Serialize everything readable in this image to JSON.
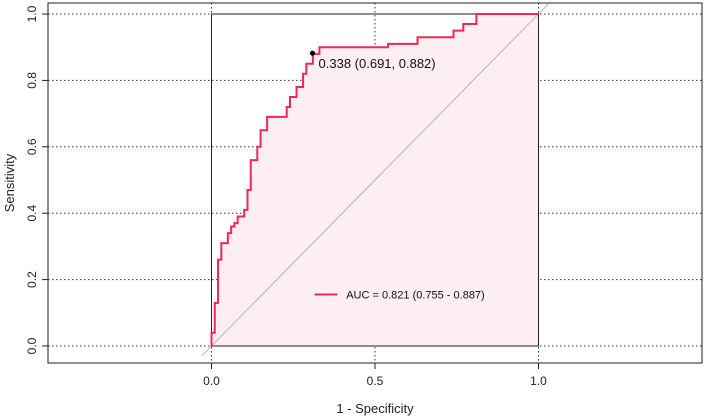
{
  "chart_data": {
    "type": "line",
    "title": "",
    "xlabel": "1 - Specificity",
    "ylabel": "Sensitivity",
    "xlim": [
      -0.5,
      1.5
    ],
    "ylim": [
      0.0,
      1.0
    ],
    "x_ticks": [
      0.0,
      0.5,
      1.0
    ],
    "x_tick_labels": [
      "0.0",
      "0.5",
      "1.0"
    ],
    "y_ticks": [
      0.0,
      0.2,
      0.4,
      0.6,
      0.8,
      1.0
    ],
    "y_tick_labels": [
      "0.0",
      "0.2",
      "0.4",
      "0.6",
      "0.8",
      "1.0"
    ],
    "grid": true,
    "colors": {
      "curve": "#f0285a",
      "fill": "#fdeef2",
      "diagonal": "#b4b4b4",
      "grid": "#333333",
      "point": "#000000"
    },
    "series": [
      {
        "values": [
          [
            0.0,
            0.0
          ],
          [
            0.0,
            0.04
          ],
          [
            0.01,
            0.04
          ],
          [
            0.01,
            0.13
          ],
          [
            0.02,
            0.13
          ],
          [
            0.02,
            0.26
          ],
          [
            0.03,
            0.26
          ],
          [
            0.03,
            0.31
          ],
          [
            0.05,
            0.31
          ],
          [
            0.05,
            0.34
          ],
          [
            0.06,
            0.34
          ],
          [
            0.06,
            0.36
          ],
          [
            0.07,
            0.36
          ],
          [
            0.07,
            0.37
          ],
          [
            0.08,
            0.37
          ],
          [
            0.08,
            0.39
          ],
          [
            0.1,
            0.39
          ],
          [
            0.1,
            0.41
          ],
          [
            0.11,
            0.41
          ],
          [
            0.11,
            0.47
          ],
          [
            0.12,
            0.47
          ],
          [
            0.12,
            0.56
          ],
          [
            0.14,
            0.56
          ],
          [
            0.14,
            0.6
          ],
          [
            0.15,
            0.6
          ],
          [
            0.15,
            0.65
          ],
          [
            0.17,
            0.65
          ],
          [
            0.17,
            0.69
          ],
          [
            0.23,
            0.69
          ],
          [
            0.23,
            0.72
          ],
          [
            0.24,
            0.72
          ],
          [
            0.24,
            0.75
          ],
          [
            0.26,
            0.75
          ],
          [
            0.26,
            0.78
          ],
          [
            0.28,
            0.78
          ],
          [
            0.28,
            0.82
          ],
          [
            0.29,
            0.82
          ],
          [
            0.29,
            0.85
          ],
          [
            0.31,
            0.85
          ],
          [
            0.31,
            0.88
          ],
          [
            0.33,
            0.88
          ],
          [
            0.33,
            0.9
          ],
          [
            0.54,
            0.9
          ],
          [
            0.54,
            0.91
          ],
          [
            0.63,
            0.91
          ],
          [
            0.63,
            0.93
          ],
          [
            0.74,
            0.93
          ],
          [
            0.74,
            0.95
          ],
          [
            0.77,
            0.95
          ],
          [
            0.77,
            0.97
          ],
          [
            0.81,
            0.97
          ],
          [
            0.81,
            1.0
          ],
          [
            1.0,
            1.0
          ]
        ]
      }
    ],
    "diagonal": [
      [
        -0.03,
        -0.03
      ],
      [
        1.03,
        1.03
      ]
    ],
    "best_point": {
      "x": 0.309,
      "y": 0.882,
      "label": "0.338 (0.691, 0.882)"
    },
    "auc_label": "AUC = 0.821 (0.755 - 0.887)",
    "legend_placement": "bottom-right"
  }
}
